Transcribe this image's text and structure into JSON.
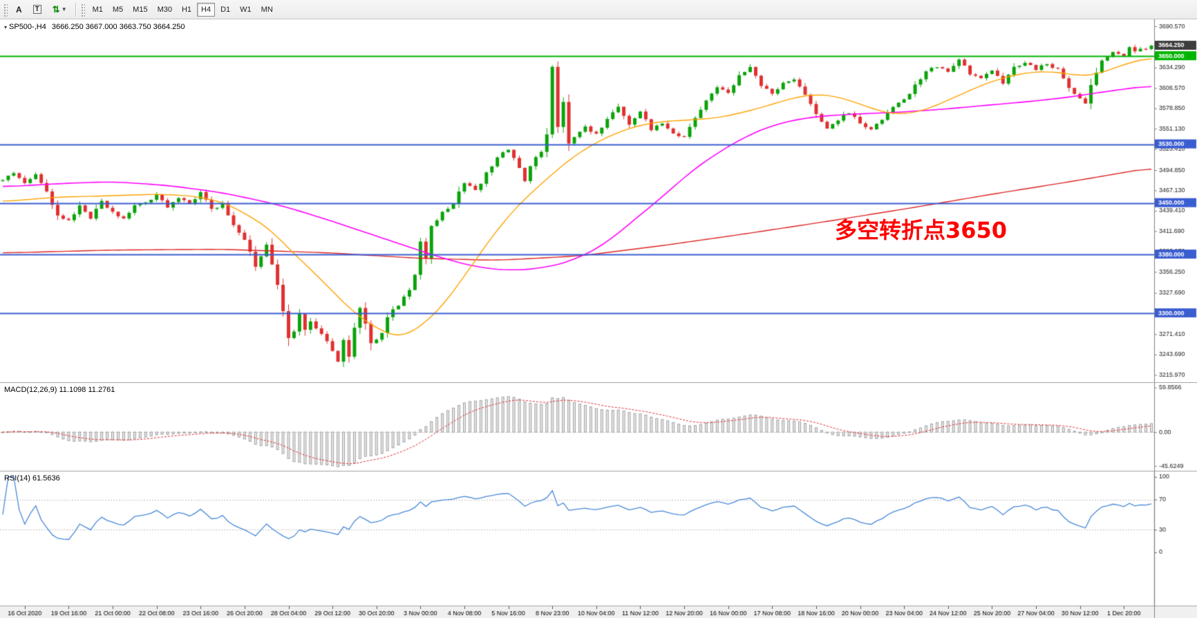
{
  "toolbar": {
    "tool_a_label": "A",
    "tool_t_label": "T",
    "timeframes": [
      "M1",
      "M5",
      "M15",
      "M30",
      "H1",
      "H4",
      "D1",
      "W1",
      "MN"
    ],
    "selected_timeframe": "H4"
  },
  "chart": {
    "title": "SP500-,H4",
    "ohlc_text": "3666.250 3667.000 3663.750 3664.250",
    "current_price": "3664.250",
    "annotation": "多空转折点3650",
    "colors": {
      "up": "#0aa30a",
      "down": "#e03030",
      "ma_fast": "#ffa200",
      "ma_mid": "#ff00ff",
      "ma_slow": "#dd2222",
      "price_box": "#3d3d3d",
      "axis_text": "#1a1a1a"
    },
    "hlines": [
      {
        "price": 3650.0,
        "label": "3650.000",
        "color": "#00b400"
      },
      {
        "price": 3530.0,
        "label": "3530.000",
        "color": "#3a5dd0"
      },
      {
        "price": 3450.0,
        "label": "3450.000",
        "color": "#3a5dd0"
      },
      {
        "price": 3380.0,
        "label": "3380.000",
        "color": "#3a5dd0"
      },
      {
        "price": 3300.0,
        "label": "3300.000",
        "color": "#3a5dd0"
      }
    ],
    "price_ticks": [
      "3690.570",
      "3634.290",
      "3606.570",
      "3578.850",
      "3551.130",
      "3523.410",
      "3494.850",
      "3467.130",
      "3439.410",
      "3411.690",
      "3383.970",
      "3356.250",
      "3327.690",
      "3300.810",
      "3271.410",
      "3243.690",
      "3215.970"
    ]
  },
  "macd": {
    "label": "MACD(12,26,9) 11.1098 11.2761",
    "ticks": [
      "59.8566",
      "0.00",
      "-45.6249"
    ],
    "histogram_color": "#e8e8e8",
    "histogram_border": "#a0a0a0",
    "signal_color": "#e03030"
  },
  "rsi": {
    "label": "RSI(14) 61.5636",
    "ticks": [
      "100",
      "70",
      "30",
      "0"
    ],
    "levels": [
      70,
      30
    ],
    "line_color": "#4688d8"
  },
  "time_axis": {
    "labels": [
      "16 Oct 2020",
      "19 Oct 16:00",
      "21 Oct 00:00",
      "22 Oct 08:00",
      "23 Oct 16:00",
      "26 Oct 20:00",
      "28 Oct 04:00",
      "29 Oct 12:00",
      "30 Oct 20:00",
      "3 Nov 00:00",
      "4 Nov 08:00",
      "5 Nov 16:00",
      "8 Nov 23:00",
      "10 Nov 04:00",
      "11 Nov 12:00",
      "12 Nov 20:00",
      "16 Nov 00:00",
      "17 Nov 08:00",
      "18 Nov 16:00",
      "20 Nov 00:00",
      "23 Nov 04:00",
      "24 Nov 12:00",
      "25 Nov 20:00",
      "27 Nov 04:00",
      "30 Nov 12:00",
      "1 Dec 20:00"
    ]
  },
  "chart_data": {
    "type": "candlestick",
    "symbol": "SP500-",
    "timeframe": "H4",
    "ohlc_current": {
      "open": 3666.25,
      "high": 3667.0,
      "low": 3663.75,
      "close": 3664.25
    },
    "num_candles": 210,
    "price_range": [
      3206,
      3700
    ],
    "last_close": 3664.25,
    "hline_levels": [
      3650,
      3530,
      3450,
      3380,
      3300
    ],
    "indicators": [
      {
        "name": "MACD",
        "params": [
          12,
          26,
          9
        ],
        "values": [
          11.1098,
          11.2761
        ]
      },
      {
        "name": "RSI",
        "params": [
          14
        ],
        "value": 61.5636
      }
    ],
    "close_path": [
      [
        0,
        3483
      ],
      [
        2,
        3492
      ],
      [
        4,
        3478
      ],
      [
        6,
        3488
      ],
      [
        8,
        3465
      ],
      [
        10,
        3432
      ],
      [
        12,
        3425
      ],
      [
        14,
        3445
      ],
      [
        16,
        3430
      ],
      [
        18,
        3452
      ],
      [
        20,
        3438
      ],
      [
        22,
        3428
      ],
      [
        24,
        3446
      ],
      [
        26,
        3450
      ],
      [
        28,
        3462
      ],
      [
        30,
        3443
      ],
      [
        32,
        3458
      ],
      [
        34,
        3448
      ],
      [
        36,
        3464
      ],
      [
        38,
        3442
      ],
      [
        40,
        3448
      ],
      [
        42,
        3420
      ],
      [
        44,
        3400
      ],
      [
        46,
        3364
      ],
      [
        48,
        3392
      ],
      [
        50,
        3340
      ],
      [
        52,
        3268
      ],
      [
        53,
        3274
      ],
      [
        54,
        3298
      ],
      [
        55,
        3276
      ],
      [
        56,
        3290
      ],
      [
        58,
        3270
      ],
      [
        60,
        3250
      ],
      [
        61,
        3234
      ],
      [
        62,
        3263
      ],
      [
        63,
        3242
      ],
      [
        64,
        3282
      ],
      [
        65,
        3306
      ],
      [
        66,
        3284
      ],
      [
        67,
        3258
      ],
      [
        68,
        3263
      ],
      [
        69,
        3272
      ],
      [
        70,
        3295
      ],
      [
        72,
        3312
      ],
      [
        74,
        3330
      ],
      [
        75,
        3352
      ],
      [
        76,
        3396
      ],
      [
        77,
        3374
      ],
      [
        78,
        3420
      ],
      [
        80,
        3436
      ],
      [
        82,
        3450
      ],
      [
        84,
        3478
      ],
      [
        86,
        3466
      ],
      [
        88,
        3490
      ],
      [
        90,
        3512
      ],
      [
        92,
        3524
      ],
      [
        94,
        3496
      ],
      [
        95,
        3480
      ],
      [
        96,
        3502
      ],
      [
        98,
        3520
      ],
      [
        99,
        3542
      ],
      [
        100,
        3636
      ],
      [
        101,
        3552
      ],
      [
        102,
        3588
      ],
      [
        103,
        3530
      ],
      [
        104,
        3540
      ],
      [
        106,
        3554
      ],
      [
        108,
        3544
      ],
      [
        110,
        3564
      ],
      [
        112,
        3580
      ],
      [
        114,
        3556
      ],
      [
        116,
        3574
      ],
      [
        118,
        3550
      ],
      [
        120,
        3560
      ],
      [
        122,
        3544
      ],
      [
        124,
        3540
      ],
      [
        126,
        3564
      ],
      [
        128,
        3588
      ],
      [
        130,
        3606
      ],
      [
        132,
        3600
      ],
      [
        134,
        3622
      ],
      [
        136,
        3634
      ],
      [
        138,
        3610
      ],
      [
        140,
        3597
      ],
      [
        142,
        3614
      ],
      [
        144,
        3620
      ],
      [
        146,
        3597
      ],
      [
        148,
        3570
      ],
      [
        150,
        3550
      ],
      [
        152,
        3564
      ],
      [
        154,
        3574
      ],
      [
        156,
        3560
      ],
      [
        158,
        3550
      ],
      [
        160,
        3564
      ],
      [
        162,
        3580
      ],
      [
        164,
        3590
      ],
      [
        166,
        3610
      ],
      [
        168,
        3630
      ],
      [
        170,
        3636
      ],
      [
        172,
        3630
      ],
      [
        174,
        3644
      ],
      [
        176,
        3627
      ],
      [
        178,
        3620
      ],
      [
        180,
        3630
      ],
      [
        182,
        3614
      ],
      [
        184,
        3634
      ],
      [
        186,
        3640
      ],
      [
        188,
        3632
      ],
      [
        190,
        3640
      ],
      [
        192,
        3632
      ],
      [
        194,
        3606
      ],
      [
        196,
        3594
      ],
      [
        197,
        3586
      ],
      [
        198,
        3610
      ],
      [
        200,
        3642
      ],
      [
        202,
        3656
      ],
      [
        204,
        3650
      ],
      [
        205,
        3663
      ],
      [
        206,
        3656
      ],
      [
        208,
        3660
      ],
      [
        209,
        3664.25
      ]
    ],
    "ma_fast": [
      [
        0,
        3452
      ],
      [
        10,
        3458
      ],
      [
        20,
        3460
      ],
      [
        28,
        3462
      ],
      [
        34,
        3460
      ],
      [
        38,
        3455
      ],
      [
        41,
        3448
      ],
      [
        45,
        3432
      ],
      [
        49,
        3412
      ],
      [
        52,
        3388
      ],
      [
        56,
        3360
      ],
      [
        60,
        3330
      ],
      [
        64,
        3300
      ],
      [
        68,
        3280
      ],
      [
        70,
        3272
      ],
      [
        72,
        3268
      ],
      [
        74,
        3272
      ],
      [
        77,
        3288
      ],
      [
        80,
        3310
      ],
      [
        83,
        3340
      ],
      [
        86,
        3372
      ],
      [
        89,
        3404
      ],
      [
        92,
        3432
      ],
      [
        95,
        3456
      ],
      [
        98,
        3476
      ],
      [
        101,
        3496
      ],
      [
        104,
        3514
      ],
      [
        107,
        3528
      ],
      [
        110,
        3540
      ],
      [
        113,
        3549
      ],
      [
        116,
        3556
      ],
      [
        120,
        3561
      ],
      [
        125,
        3563
      ],
      [
        130,
        3566
      ],
      [
        134,
        3572
      ],
      [
        138,
        3580
      ],
      [
        142,
        3589
      ],
      [
        145,
        3595
      ],
      [
        148,
        3598
      ],
      [
        151,
        3596
      ],
      [
        154,
        3590
      ],
      [
        157,
        3582
      ],
      [
        160,
        3574
      ],
      [
        163,
        3571
      ],
      [
        166,
        3573
      ],
      [
        169,
        3580
      ],
      [
        172,
        3590
      ],
      [
        175,
        3600
      ],
      [
        178,
        3610
      ],
      [
        181,
        3618
      ],
      [
        184,
        3624
      ],
      [
        187,
        3628
      ],
      [
        190,
        3629
      ],
      [
        193,
        3627
      ],
      [
        196,
        3623
      ],
      [
        199,
        3625
      ],
      [
        202,
        3633
      ],
      [
        205,
        3641
      ],
      [
        209,
        3648
      ]
    ],
    "ma_mid": [
      [
        0,
        3472
      ],
      [
        12,
        3477
      ],
      [
        20,
        3479
      ],
      [
        30,
        3474
      ],
      [
        40,
        3464
      ],
      [
        50,
        3448
      ],
      [
        58,
        3430
      ],
      [
        66,
        3410
      ],
      [
        74,
        3390
      ],
      [
        80,
        3375
      ],
      [
        86,
        3363
      ],
      [
        92,
        3358
      ],
      [
        98,
        3361
      ],
      [
        104,
        3372
      ],
      [
        110,
        3396
      ],
      [
        115,
        3428
      ],
      [
        120,
        3458
      ],
      [
        125,
        3492
      ],
      [
        130,
        3518
      ],
      [
        135,
        3540
      ],
      [
        140,
        3556
      ],
      [
        146,
        3566
      ],
      [
        152,
        3570
      ],
      [
        158,
        3572
      ],
      [
        164,
        3574
      ],
      [
        170,
        3577
      ],
      [
        176,
        3581
      ],
      [
        182,
        3585
      ],
      [
        188,
        3589
      ],
      [
        194,
        3594
      ],
      [
        200,
        3601
      ],
      [
        209,
        3610
      ]
    ],
    "ma_slow": [
      [
        0,
        3382
      ],
      [
        20,
        3386
      ],
      [
        40,
        3387
      ],
      [
        60,
        3382
      ],
      [
        75,
        3375
      ],
      [
        90,
        3372
      ],
      [
        105,
        3378
      ],
      [
        120,
        3392
      ],
      [
        135,
        3408
      ],
      [
        150,
        3425
      ],
      [
        165,
        3443
      ],
      [
        180,
        3462
      ],
      [
        195,
        3480
      ],
      [
        209,
        3498
      ]
    ]
  }
}
